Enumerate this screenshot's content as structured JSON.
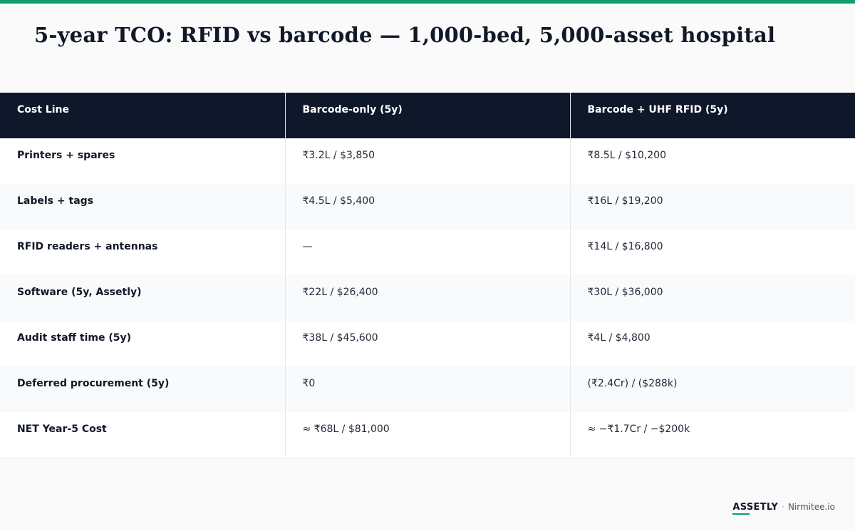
{
  "title": "5-year TCO: RFID vs barcode — 1,000-bed, 5,000-asset hospital",
  "table": {
    "headers": [
      "Cost Line",
      "Barcode-only (5y)",
      "Barcode + UHF RFID (5y)"
    ],
    "rows": [
      [
        "Printers + spares",
        "₹3.2L / $3,850",
        "₹8.5L / $10,200"
      ],
      [
        "Labels + tags",
        "₹4.5L / $5,400",
        "₹16L / $19,200"
      ],
      [
        "RFID readers + antennas",
        "—",
        "₹14L / $16,800"
      ],
      [
        "Software (5y, Assetly)",
        "₹22L / $26,400",
        "₹30L / $36,000"
      ],
      [
        "Audit staff time (5y)",
        "₹38L / $45,600",
        "₹4L / $4,800"
      ],
      [
        "Deferred procurement (5y)",
        "₹0",
        "(₹2.4Cr) / ($288k)"
      ],
      [
        "NET Year-5 Cost",
        "≈ ₹68L / $81,000",
        "≈ −₹1.7Cr / −$200k"
      ]
    ]
  },
  "footer": {
    "brand": "ASSETLY",
    "separator": "·",
    "site": "Nirmitee.io"
  },
  "colors": {
    "accent": "#0f9d6b",
    "header_bg": "#0f172a"
  }
}
